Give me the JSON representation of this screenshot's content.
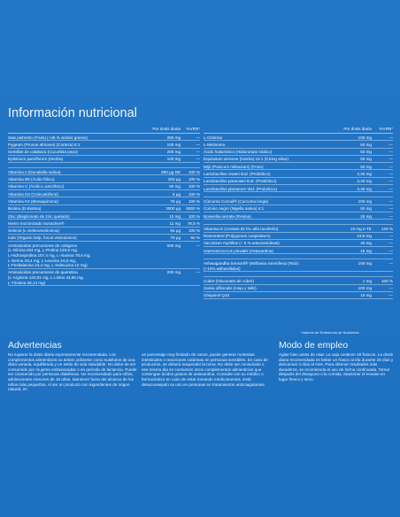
{
  "title": "Información nutricional",
  "headers": {
    "dose": "Por dosis diaria",
    "vrn": "%VRN*"
  },
  "left_groups": [
    [
      {
        "name": "Saw palmetto (Fruto) (+45 % ácidos grasos)",
        "v": "256 mg",
        "p": "—"
      },
      {
        "name": "Pygeum (Prunus africana) (Corteza) 5:1",
        "v": "100 mg",
        "p": "—"
      },
      {
        "name": "Semillas de calabaza (Cucurbita pepo)",
        "v": "200 mg",
        "p": "—"
      },
      {
        "name": "Epilobium parviflorum (Hierba)",
        "v": "100 mg",
        "p": "—"
      }
    ],
    [
      {
        "name": "Vitamina A (Dunaliella salina)",
        "v": "800 µg RE",
        "p": "100 %"
      },
      {
        "name": "Vitamina B9 (Ácido fólico)",
        "v": "200 µg",
        "p": "100 %"
      },
      {
        "name": "Vitamina C (Ácido L-ascórbico)",
        "v": "80 mg",
        "p": "100 %"
      },
      {
        "name": "Vitamina D3 (Colecalciferol)",
        "v": "5 µg",
        "p": "100 %"
      },
      {
        "name": "Vitamina K2 (Menaquinona)",
        "v": "75 µg",
        "p": "100 %"
      },
      {
        "name": "Biotina (D-Biotina)",
        "v": "3000 µg",
        "p": "6000 %"
      },
      {
        "name": "Zinc (Bisglicinato de zinc quelado)",
        "v": "10 mg",
        "p": "100 %"
      },
      {
        "name": "Hierro micronizado Sunactive®",
        "v": "11 mg",
        "p": "78,5 %"
      },
      {
        "name": "Selenio (L-Selenometionina)",
        "v": "55 µg",
        "p": "100 %"
      },
      {
        "name": "Iodo (Organic kelp, fucus vesiculosus)",
        "v": "75 µg",
        "p": "50 %"
      },
      {
        "name": "Aminoácidos precursores de colágeno",
        "v": "600 mg",
        "p": "—",
        "sub": [
          "(L-Glicina 204 mg, L-Prolina 120,6 mg,",
          "L-Hidroxiprolina 107,4 mg, L-Alanina 78,6 mg,",
          "L-Serina 29,4 mg, L-Leucina 24,6 mg,",
          "L-Fenilalanina 23,4 mg, L-Isoleucina 12 mg)"
        ]
      },
      {
        "name": "Aminoácidos precursores de queratina",
        "v": "200 mg",
        "p": "—",
        "sub": [
          "(L-Arginina 120,91 mg, L-Lisina 43,95 mg,",
          "L-Tirosina 35,14 mg)"
        ]
      }
    ]
  ],
  "right_groups": [
    [
      {
        "name": "L-Cisteína",
        "v": "100 mg",
        "p": "—"
      },
      {
        "name": "L-Metionina",
        "v": "50 mg",
        "p": "—"
      },
      {
        "name": "Ácido hialurónico (Hialuronato sódico)",
        "v": "50 mg",
        "p": "—"
      },
      {
        "name": "Equisetum arvense (Hierba) 10:1 (0,5mg silice)",
        "v": "50 mg",
        "p": "—"
      },
      {
        "name": "Mijo (Panicum miliaceum) (Fruto)",
        "v": "50 mg",
        "p": "—"
      },
      {
        "name": "Lactobacillus reuteri tind. (Probiótico)",
        "v": "3,33 mg",
        "p": "—"
      },
      {
        "name": "Lactobacillus paracasei tind. (Probiótico)",
        "v": "3,33 mg",
        "p": "—"
      },
      {
        "name": "Lactobacillus plantarum tind. (Probiótico)",
        "v": "3,33 mg",
        "p": "—"
      }
    ],
    [
      {
        "name": "Cúrcuma Curcuil® (Curcuma longa)",
        "v": "100 mg",
        "p": "—"
      },
      {
        "name": "Comino negro (Nigella sativa) 4:1",
        "v": "50 mg",
        "p": "—"
      },
      {
        "name": "Boswellia serrata (Resina)",
        "v": "25 mg",
        "p": "—"
      }
    ],
    [
      {
        "name": "Vitamina E (Acetato de DL-alfa tocoferilo)",
        "v": "15 mg α-TE",
        "p": "125 %"
      },
      {
        "name": "Resveratrol (Polygonum cuspidatum)",
        "v": "19,6 mg",
        "p": "—"
      },
      {
        "name": "Vaccinium myrtillus (+ 5 % antocianidinas)",
        "v": "40 mg",
        "p": "—"
      },
      {
        "name": "Haematococcus pluvialis (Astaxantina)",
        "v": "15 mg",
        "p": "—"
      }
    ],
    [
      {
        "name": "Ashwagandha Sensoril® (Withania somnifera) (Raíz)",
        "v": "100 mg",
        "p": "—",
        "sub": [
          "(+10% withanólidos)"
        ]
      }
    ],
    [
      {
        "name": "Cobre (Gluconato de cobre)",
        "v": "1 mg",
        "p": "100 %"
      },
      {
        "name": "Salvia officinalis (Hoja y tallo)",
        "v": "100 mg",
        "p": "—"
      },
      {
        "name": "Ubiquinol Q10",
        "v": "10 mg",
        "p": "—"
      }
    ]
  ],
  "footnote": "*Valores de Referencia de Nutrientes",
  "advertencias_title": "Advertencias",
  "advertencias_p1": "No superar la dosis diaria expresamente recomendada. Los complementos alimenticios no deben utilizarse como sustitutos de una dieta variada, equilibrada y un estilo de vida saludable. No debe de ser consumido por mujeres embarazadas o en período de lactancia. Puede ser consumido por personas diabéticas. No recomendado para niños, adolescentes menores de 18 años. Mantener fuera del alcance de los niños más pequeños. Al ser un producto con ingredientes de origen natural, en",
  "advertencias_p2": "un porcentaje muy limitado de casos, puede generar molestias intestinales o reacciones cutáneas en personas sensibles. En caso de producirse, se deberá suspender la toma. No debe ser consumido o ese mismo día se consumen otros complementos alimenticios que contengan ácidos grasos de astaxantina. Consulte con su médico o farmacéutico en caso de estar tomando medicamentos. Está desaconsejado su uso en personas en tratamientos anticoagulantes.",
  "modo_title": "Modo de empleo",
  "modo_text": "Agitar bien antes de usar. La caja contiene 28 frascos. La dosis diaria recomendada es beber un frasco al día durante 28 días y descansar 2 días al mes. Para obtener resultados más duraderos, se recomienda el uso de forma continuada. Tomar después del desayuno o la comida. Mantener el envase en lugar fresco y seco.",
  "colors": {
    "background": "#1f74c4",
    "text": "#ffffff"
  }
}
